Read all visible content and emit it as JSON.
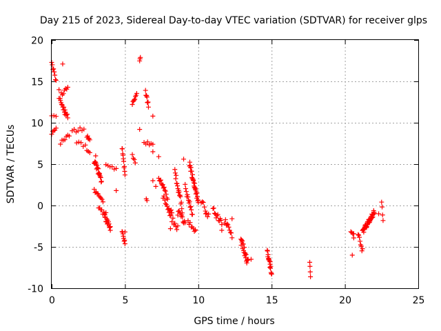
{
  "chart_data": {
    "type": "scatter",
    "title": "Day 215 of 2023, Sidereal Day-to-day VTEC variation (SDTVAR) for receiver glps",
    "xlabel": "GPS time / hours",
    "ylabel": "SDTVAR / TECUs",
    "xlim": [
      0,
      25
    ],
    "ylim": [
      -10,
      20
    ],
    "xticks": [
      0,
      5,
      10,
      15,
      20,
      25
    ],
    "yticks": [
      -10,
      -5,
      0,
      5,
      10,
      15,
      20
    ],
    "xtick_labels": [
      "0",
      "5",
      "10",
      "15",
      "20",
      "25"
    ],
    "ytick_labels": [
      "-10",
      "-5",
      "0",
      "5",
      "10",
      "15",
      "20"
    ],
    "grid": true,
    "marker": "+",
    "color": "#ff0000",
    "segments": [
      {
        "x0": 0.0,
        "x1": 0.3,
        "y0": 17.3,
        "y1": 15.0,
        "n": 8,
        "jitter": 0.2
      },
      {
        "x0": 0.0,
        "x1": 0.3,
        "y0": 10.8,
        "y1": 10.8,
        "n": 3,
        "jitter": 0.1
      },
      {
        "x0": 0.0,
        "x1": 0.3,
        "y0": 8.8,
        "y1": 9.3,
        "n": 5,
        "jitter": 0.2
      },
      {
        "x0": 0.5,
        "x1": 1.1,
        "y0": 13.0,
        "y1": 14.3,
        "n": 9,
        "jitter": 0.3
      },
      {
        "x0": 0.6,
        "x1": 1.1,
        "y0": 12.5,
        "y1": 10.7,
        "n": 14,
        "jitter": 0.3
      },
      {
        "x0": 0.6,
        "x1": 1.1,
        "y0": 7.6,
        "y1": 8.3,
        "n": 6,
        "jitter": 0.2
      },
      {
        "x0": 1.4,
        "x1": 2.2,
        "y0": 9.0,
        "y1": 9.4,
        "n": 7,
        "jitter": 0.3
      },
      {
        "x0": 1.7,
        "x1": 2.3,
        "y0": 7.6,
        "y1": 7.2,
        "n": 5,
        "jitter": 0.2
      },
      {
        "x0": 2.4,
        "x1": 2.6,
        "y0": 8.4,
        "y1": 7.9,
        "n": 5,
        "jitter": 0.2
      },
      {
        "x0": 2.4,
        "x1": 2.6,
        "y0": 6.6,
        "y1": 6.3,
        "n": 3,
        "jitter": 0.1
      },
      {
        "x0": 2.9,
        "x1": 3.4,
        "y0": 5.5,
        "y1": 3.0,
        "n": 20,
        "jitter": 0.4
      },
      {
        "x0": 2.9,
        "x1": 3.5,
        "y0": 1.8,
        "y1": 0.5,
        "n": 10,
        "jitter": 0.3
      },
      {
        "x0": 3.2,
        "x1": 3.7,
        "y0": -0.2,
        "y1": -1.0,
        "n": 8,
        "jitter": 0.4
      },
      {
        "x0": 3.6,
        "x1": 4.0,
        "y0": -1.3,
        "y1": -2.7,
        "n": 14,
        "jitter": 0.3
      },
      {
        "x0": 3.7,
        "x1": 4.4,
        "y0": 4.8,
        "y1": 4.4,
        "n": 6,
        "jitter": 0.3
      },
      {
        "x0": 4.8,
        "x1": 5.0,
        "y0": 7.0,
        "y1": 3.8,
        "n": 10,
        "jitter": 0.3
      },
      {
        "x0": 4.8,
        "x1": 5.0,
        "y0": -3.0,
        "y1": -4.6,
        "n": 8,
        "jitter": 0.2
      },
      {
        "x0": 5.5,
        "x1": 5.8,
        "y0": 12.5,
        "y1": 13.5,
        "n": 8,
        "jitter": 0.3
      },
      {
        "x0": 5.5,
        "x1": 5.7,
        "y0": 6.0,
        "y1": 5.3,
        "n": 4,
        "jitter": 0.2
      },
      {
        "x0": 6.0,
        "x1": 6.05,
        "y0": 17.5,
        "y1": 17.8,
        "n": 3,
        "jitter": 0.1
      },
      {
        "x0": 6.4,
        "x1": 6.6,
        "y0": 13.8,
        "y1": 12.0,
        "n": 9,
        "jitter": 0.3
      },
      {
        "x0": 6.3,
        "x1": 6.9,
        "y0": 7.6,
        "y1": 7.4,
        "n": 6,
        "jitter": 0.2
      },
      {
        "x0": 7.3,
        "x1": 7.9,
        "y0": 3.5,
        "y1": 1.0,
        "n": 14,
        "jitter": 0.4
      },
      {
        "x0": 7.6,
        "x1": 8.2,
        "y0": 1.0,
        "y1": -1.0,
        "n": 12,
        "jitter": 0.4
      },
      {
        "x0": 8.0,
        "x1": 8.6,
        "y0": -1.0,
        "y1": -2.8,
        "n": 10,
        "jitter": 0.4
      },
      {
        "x0": 8.4,
        "x1": 8.9,
        "y0": 4.2,
        "y1": -0.5,
        "n": 18,
        "jitter": 0.5
      },
      {
        "x0": 8.6,
        "x1": 9.1,
        "y0": -0.8,
        "y1": -2.0,
        "n": 12,
        "jitter": 0.4
      },
      {
        "x0": 9.1,
        "x1": 9.6,
        "y0": 2.2,
        "y1": -1.0,
        "n": 14,
        "jitter": 0.4
      },
      {
        "x0": 9.4,
        "x1": 10.0,
        "y0": 5.0,
        "y1": 0.5,
        "n": 30,
        "jitter": 0.4
      },
      {
        "x0": 9.3,
        "x1": 9.8,
        "y0": -2.0,
        "y1": -3.0,
        "n": 8,
        "jitter": 0.3
      },
      {
        "x0": 10.2,
        "x1": 10.7,
        "y0": 0.5,
        "y1": -1.2,
        "n": 8,
        "jitter": 0.4
      },
      {
        "x0": 11.0,
        "x1": 11.6,
        "y0": -0.5,
        "y1": -2.3,
        "n": 12,
        "jitter": 0.4
      },
      {
        "x0": 11.8,
        "x1": 12.3,
        "y0": -1.8,
        "y1": -3.7,
        "n": 10,
        "jitter": 0.4
      },
      {
        "x0": 12.9,
        "x1": 13.4,
        "y0": -4.2,
        "y1": -7.0,
        "n": 22,
        "jitter": 0.5
      },
      {
        "x0": 14.7,
        "x1": 15.0,
        "y0": -5.6,
        "y1": -8.1,
        "n": 16,
        "jitter": 0.4
      },
      {
        "x0": 17.6,
        "x1": 17.65,
        "y0": -7.0,
        "y1": -8.5,
        "n": 4,
        "jitter": 0.2
      },
      {
        "x0": 20.4,
        "x1": 20.6,
        "y0": -3.0,
        "y1": -3.8,
        "n": 4,
        "jitter": 0.2
      },
      {
        "x0": 20.9,
        "x1": 21.2,
        "y0": -3.5,
        "y1": -5.5,
        "n": 8,
        "jitter": 0.3
      },
      {
        "x0": 21.2,
        "x1": 22.0,
        "y0": -3.2,
        "y1": -0.8,
        "n": 40,
        "jitter": 0.3
      },
      {
        "x0": 22.5,
        "x1": 22.6,
        "y0": 0.4,
        "y1": -1.8,
        "n": 4,
        "jitter": 0.2
      }
    ],
    "points": [
      [
        0.75,
        17.1
      ],
      [
        0.5,
        14.0
      ],
      [
        0.9,
        11.0
      ],
      [
        1.2,
        8.4
      ],
      [
        3.0,
        6.0
      ],
      [
        4.4,
        1.8
      ],
      [
        4.0,
        -3.0
      ],
      [
        5.0,
        -3.2
      ],
      [
        6.0,
        9.2
      ],
      [
        6.9,
        10.8
      ],
      [
        6.9,
        6.5
      ],
      [
        6.45,
        0.8
      ],
      [
        6.5,
        0.6
      ],
      [
        7.3,
        5.9
      ],
      [
        7.1,
        2.3
      ],
      [
        6.9,
        3.0
      ],
      [
        8.1,
        -2.8
      ],
      [
        9.0,
        5.6
      ],
      [
        9.8,
        -3.0
      ],
      [
        10.5,
        -1.0
      ],
      [
        11.6,
        -3.0
      ],
      [
        12.3,
        -1.6
      ],
      [
        13.6,
        -6.5
      ],
      [
        14.9,
        -6.8
      ],
      [
        20.5,
        -6.0
      ],
      [
        20.6,
        -3.4
      ],
      [
        22.3,
        -1.0
      ]
    ]
  }
}
